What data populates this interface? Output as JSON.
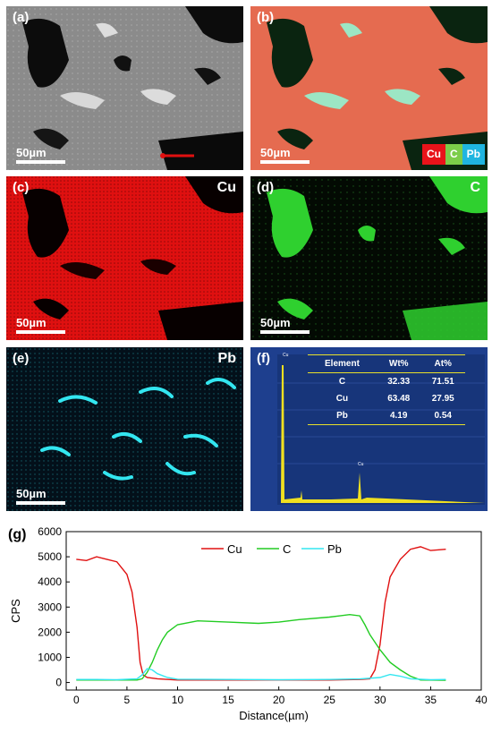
{
  "panels": {
    "a": {
      "label": "(a)",
      "scale": "50µm"
    },
    "b": {
      "label": "(b)",
      "scale": "50µm",
      "legend": [
        {
          "text": "Cu",
          "color": "#e8131a"
        },
        {
          "text": "C",
          "color": "#7ccd4a"
        },
        {
          "text": "Pb",
          "color": "#1fb5e0"
        }
      ]
    },
    "c": {
      "label": "(c)",
      "element": "Cu",
      "scale": "50µm",
      "color": "#e01010"
    },
    "d": {
      "label": "(d)",
      "element": "C",
      "scale": "50µm",
      "color": "#2fcf2f"
    },
    "e": {
      "label": "(e)",
      "element": "Pb",
      "scale": "50µm",
      "color": "#25d0e0"
    },
    "f": {
      "label": "(f)",
      "table": {
        "headers": [
          "Element",
          "Wt%",
          "At%"
        ],
        "rows": [
          [
            "C",
            "32.33",
            "71.51"
          ],
          [
            "Cu",
            "63.48",
            "27.95"
          ],
          [
            "Pb",
            "4.19",
            "0.54"
          ]
        ]
      }
    }
  },
  "colors": {
    "cu": "#e01010",
    "c": "#22cc22",
    "pb": "#33e6f0",
    "eds_bg": "#1f3f8f"
  },
  "chart_data": {
    "label": "(g)",
    "type": "line",
    "xlabel": "Distance(µm)",
    "ylabel": "CPS",
    "xlim": [
      -1,
      40
    ],
    "ylim": [
      -300,
      6000
    ],
    "xticks": [
      0,
      5,
      10,
      15,
      20,
      25,
      30,
      35,
      40
    ],
    "yticks": [
      0,
      1000,
      2000,
      3000,
      4000,
      5000,
      6000
    ],
    "legend_position": "top-center",
    "series": [
      {
        "name": "Cu",
        "color": "#e01010",
        "x": [
          0,
          1,
          2,
          3,
          4,
          5,
          5.5,
          6,
          6.3,
          6.6,
          7,
          8,
          10,
          15,
          20,
          25,
          28,
          29,
          29.5,
          30,
          30.5,
          31,
          32,
          33,
          34,
          35,
          36.5
        ],
        "y": [
          4900,
          4850,
          5000,
          4900,
          4800,
          4300,
          3600,
          2200,
          800,
          300,
          200,
          150,
          100,
          100,
          100,
          100,
          120,
          150,
          500,
          1500,
          3200,
          4200,
          4900,
          5300,
          5400,
          5250,
          5300
        ]
      },
      {
        "name": "C",
        "color": "#22cc22",
        "x": [
          0,
          2,
          4,
          5,
          6,
          6.5,
          7,
          7.5,
          8,
          8.5,
          9,
          10,
          12,
          15,
          18,
          20,
          22,
          25,
          27,
          28,
          28.5,
          29,
          30,
          31,
          32,
          33,
          34,
          36.5
        ],
        "y": [
          100,
          100,
          100,
          100,
          100,
          150,
          400,
          800,
          1300,
          1700,
          2000,
          2300,
          2450,
          2400,
          2350,
          2400,
          2500,
          2600,
          2700,
          2650,
          2300,
          1900,
          1300,
          800,
          500,
          250,
          100,
          90
        ]
      },
      {
        "name": "Pb",
        "color": "#33e6f0",
        "x": [
          0,
          2,
          4,
          6,
          6.5,
          7,
          7.5,
          8,
          9,
          10,
          15,
          20,
          25,
          28,
          30,
          31,
          32,
          33,
          35,
          36.5
        ],
        "y": [
          120,
          120,
          110,
          150,
          300,
          550,
          500,
          350,
          200,
          130,
          120,
          110,
          120,
          140,
          200,
          320,
          250,
          150,
          110,
          120
        ]
      }
    ]
  }
}
